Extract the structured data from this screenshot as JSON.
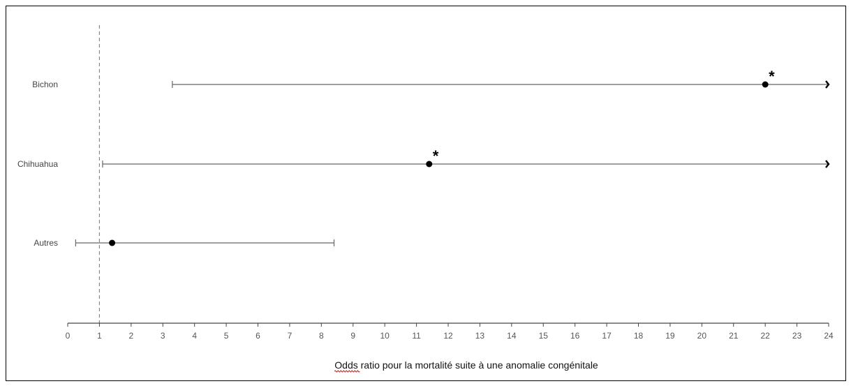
{
  "chart_data": {
    "type": "scatter",
    "title": "",
    "xlabel": "Odds ratio pour la mortalité suite à une anomalie congénitale",
    "ylabel": "",
    "xlim": [
      0,
      24
    ],
    "xticks": [
      0,
      1,
      2,
      3,
      4,
      5,
      6,
      7,
      8,
      9,
      10,
      11,
      12,
      13,
      14,
      15,
      16,
      17,
      18,
      19,
      20,
      21,
      22,
      23,
      24
    ],
    "reference_line": 1,
    "grid": false,
    "legend": "none",
    "categories": [
      "Bichon",
      "Chihuahua",
      "Autres"
    ],
    "points": [
      {
        "label": "Bichon",
        "or": 22.0,
        "ci_low": 3.3,
        "ci_high": 24,
        "ci_high_truncated": true,
        "significant": true,
        "marker": "*"
      },
      {
        "label": "Chihuahua",
        "or": 11.4,
        "ci_low": 1.1,
        "ci_high": 24,
        "ci_high_truncated": true,
        "significant": true,
        "marker": "*"
      },
      {
        "label": "Autres",
        "or": 1.4,
        "ci_low": 0.25,
        "ci_high": 8.4,
        "ci_high_truncated": false,
        "significant": false,
        "marker": ""
      }
    ],
    "colors": {
      "point": "#000000",
      "ci_line": "#666666",
      "reference_line": "#888888",
      "axis": "#444444"
    }
  }
}
